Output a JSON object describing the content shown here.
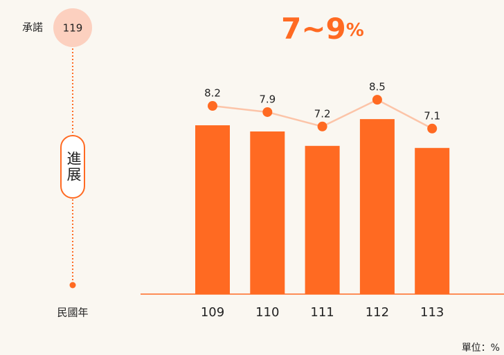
{
  "chart_data": {
    "type": "bar",
    "commitment_label": "承諾",
    "commitment_year": "119",
    "target": "7~9",
    "target_unit": "%",
    "progress_label": "進展",
    "axis_label": "民國年",
    "unit_note": "單位：%",
    "categories": [
      "109",
      "110",
      "111",
      "112",
      "113"
    ],
    "values": [
      8.2,
      7.9,
      7.2,
      8.5,
      7.1
    ],
    "color": "#ff6a22",
    "line_color": "#fcc4a8"
  }
}
